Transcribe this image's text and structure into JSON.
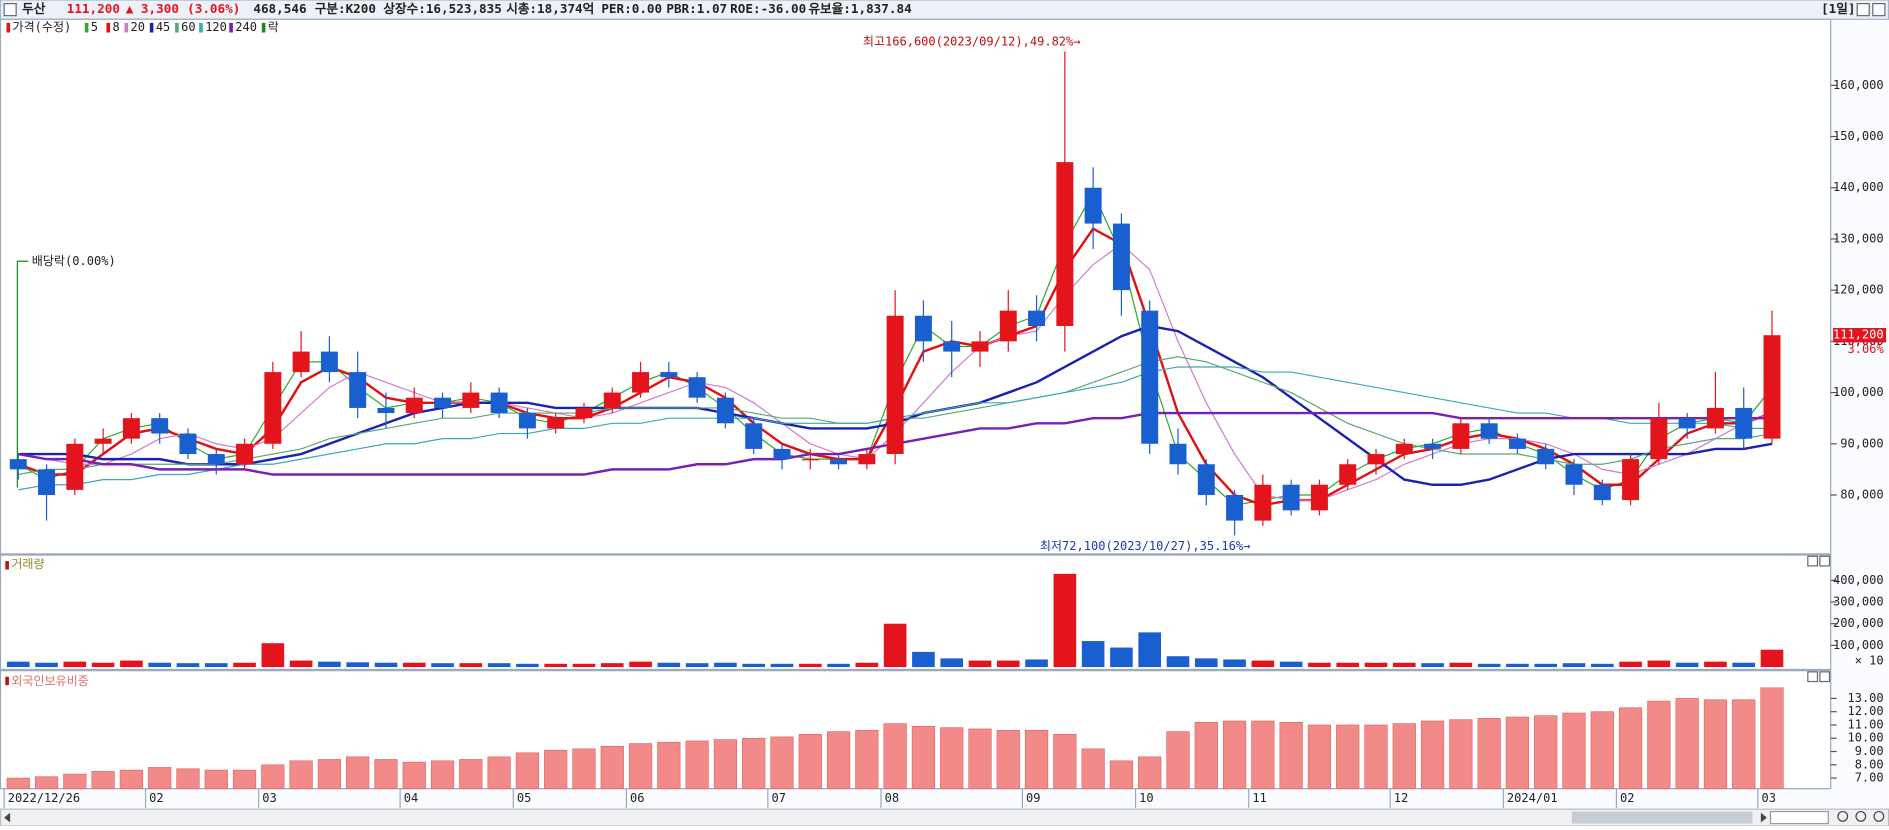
{
  "header": {
    "name": "두산",
    "price": "111,200",
    "change": "▲ 3,300",
    "change_pct": "(3.06%)",
    "volume": "468,546",
    "market": "구분:K200",
    "shares": "상장수:16,523,835",
    "market_cap": "시총:18,374억",
    "per": "PER:0.00",
    "pbr": "PBR:1.07",
    "roe": "ROE:-36.00",
    "reserve": "유보율:1,837.84",
    "period": "[1일]"
  },
  "chart_data": [
    {
      "type": "candlestick",
      "price_label": "가격(수정)",
      "ex_rights_label": "락",
      "up_color": "#e3141c",
      "down_color": "#1a5fd0",
      "high_annotation": "최고166,600(2023/09/12),49.82%→",
      "low_annotation": "최저72,100(2023/10/27),35.16%→",
      "dividend_annotation": "배당락(0.00%)",
      "last_price_label": "111,200",
      "last_change_label": "3.06%",
      "open": [
        87000,
        85000,
        81000,
        90000,
        91000,
        95000,
        92000,
        88000,
        86000,
        90000,
        104000,
        108000,
        104000,
        97000,
        96000,
        99000,
        97000,
        100000,
        96000,
        93000,
        95000,
        97000,
        100000,
        104000,
        103000,
        99000,
        94000,
        89000,
        87000,
        87000,
        86000,
        88000,
        115000,
        110000,
        108000,
        110000,
        116000,
        113000,
        140000,
        133000,
        116000,
        90000,
        86000,
        80000,
        75000,
        82000,
        77000,
        82000,
        86000,
        88000,
        90000,
        89000,
        94000,
        91000,
        89000,
        86000,
        82000,
        79000,
        87000,
        95000,
        93000,
        97000,
        91000
      ],
      "high": [
        88000,
        86000,
        91000,
        93000,
        96000,
        96000,
        93000,
        89000,
        91000,
        106000,
        112000,
        111000,
        108000,
        100000,
        101000,
        100000,
        102000,
        101000,
        97000,
        96000,
        98000,
        101000,
        106000,
        106000,
        104000,
        100000,
        95000,
        90000,
        89000,
        88000,
        89000,
        120000,
        118000,
        114000,
        112000,
        120000,
        119000,
        166600,
        144000,
        135000,
        118000,
        93000,
        87000,
        81000,
        84000,
        83000,
        83000,
        87000,
        89000,
        91000,
        91000,
        95000,
        95000,
        92000,
        90000,
        87000,
        83000,
        88000,
        98000,
        96000,
        104000,
        101000,
        116000
      ],
      "low": [
        83000,
        75000,
        80000,
        88000,
        90000,
        90000,
        87000,
        84000,
        85000,
        89000,
        103000,
        102000,
        95000,
        93000,
        95000,
        95000,
        96000,
        95000,
        91000,
        92000,
        94000,
        96000,
        99000,
        101000,
        98000,
        93000,
        88000,
        85000,
        85000,
        85000,
        85000,
        86000,
        106000,
        103000,
        105000,
        108000,
        110000,
        108000,
        128000,
        115000,
        88000,
        84000,
        78000,
        72100,
        74000,
        76000,
        76000,
        81000,
        84000,
        87000,
        87000,
        88000,
        90000,
        88000,
        85000,
        80000,
        78000,
        78000,
        86000,
        91000,
        92000,
        89000,
        90000
      ],
      "close": [
        85000,
        80000,
        90000,
        91000,
        95000,
        92000,
        88000,
        86000,
        90000,
        104000,
        108000,
        104000,
        97000,
        96000,
        99000,
        97000,
        100000,
        96000,
        93000,
        95000,
        97000,
        100000,
        104000,
        103000,
        99000,
        94000,
        89000,
        87000,
        87000,
        86000,
        88000,
        115000,
        110000,
        108000,
        110000,
        116000,
        113000,
        145000,
        133000,
        120000,
        90000,
        86000,
        80000,
        75000,
        82000,
        77000,
        82000,
        86000,
        88000,
        90000,
        89000,
        94000,
        91000,
        89000,
        86000,
        82000,
        79000,
        87000,
        95000,
        93000,
        97000,
        91000,
        111200
      ],
      "series": [
        {
          "name": "5",
          "color": "#2fa82f",
          "values": [
            86000,
            83000,
            85000,
            91000,
            93000,
            94000,
            90000,
            87000,
            88000,
            97000,
            106000,
            106000,
            101000,
            97000,
            98000,
            98000,
            99000,
            98000,
            95000,
            94000,
            96000,
            99000,
            102000,
            104000,
            101000,
            97000,
            92000,
            88000,
            87000,
            87000,
            87000,
            102000,
            113000,
            109000,
            109000,
            113000,
            115000,
            129000,
            139000,
            127000,
            105000,
            88000,
            83000,
            78000,
            79000,
            80000,
            80000,
            84000,
            87000,
            89000,
            90000,
            92000,
            93000,
            90000,
            88000,
            84000,
            81000,
            83000,
            91000,
            94000,
            95000,
            94000,
            101000
          ]
        },
        {
          "name": "8",
          "color": "#e01010",
          "values": [
            86000,
            84000,
            84000,
            88000,
            92000,
            93000,
            91000,
            89000,
            88000,
            93000,
            102000,
            105000,
            103000,
            99000,
            98000,
            98000,
            98000,
            98000,
            96000,
            95000,
            95000,
            97000,
            100000,
            103000,
            102000,
            99000,
            94000,
            90000,
            88000,
            87000,
            87000,
            97000,
            108000,
            110000,
            109000,
            111000,
            113000,
            124000,
            132000,
            129000,
            113000,
            96000,
            86000,
            80000,
            78000,
            79000,
            79000,
            82000,
            85000,
            88000,
            89000,
            91000,
            92000,
            91000,
            89000,
            86000,
            82000,
            82000,
            87000,
            92000,
            94000,
            94000,
            96000
          ]
        },
        {
          "name": "20",
          "color": "#d27ad2",
          "values": [
            88000,
            87000,
            86000,
            86000,
            88000,
            91000,
            92000,
            90000,
            89000,
            91000,
            96000,
            101000,
            104000,
            102000,
            100000,
            98000,
            98000,
            98000,
            97000,
            96000,
            95000,
            96000,
            98000,
            100000,
            102000,
            101000,
            98000,
            94000,
            90000,
            88000,
            87000,
            92000,
            98000,
            104000,
            109000,
            111000,
            112000,
            119000,
            125000,
            129000,
            124000,
            110000,
            98000,
            88000,
            80000,
            79000,
            79000,
            81000,
            83000,
            86000,
            88000,
            90000,
            91000,
            91000,
            90000,
            88000,
            85000,
            84000,
            86000,
            88000,
            91000,
            94000,
            96000
          ]
        },
        {
          "name": "45",
          "color": "#1c22b0",
          "values": [
            88000,
            88000,
            88000,
            87000,
            87000,
            87000,
            86000,
            86000,
            86000,
            87000,
            88000,
            90000,
            92000,
            94000,
            96000,
            97000,
            98000,
            98000,
            98000,
            97000,
            97000,
            97000,
            97000,
            97000,
            97000,
            96000,
            95000,
            94000,
            93000,
            93000,
            93000,
            94000,
            96000,
            97000,
            98000,
            100000,
            102000,
            105000,
            108000,
            111000,
            113000,
            112000,
            109000,
            106000,
            103000,
            99000,
            95000,
            91000,
            87000,
            83000,
            82000,
            82000,
            83000,
            85000,
            87000,
            88000,
            88000,
            88000,
            88000,
            88000,
            89000,
            89000,
            90000
          ]
        },
        {
          "name": "60",
          "color": "#5aa878",
          "values": [
            84000,
            85000,
            85000,
            86000,
            86000,
            86000,
            86000,
            86000,
            87000,
            88000,
            89000,
            91000,
            92000,
            93000,
            94000,
            95000,
            95000,
            96000,
            96000,
            96000,
            96000,
            97000,
            97000,
            97000,
            97000,
            97000,
            96000,
            95000,
            95000,
            94000,
            94000,
            95000,
            95000,
            96000,
            97000,
            98000,
            99000,
            100000,
            102000,
            104000,
            106000,
            107000,
            106000,
            104000,
            102000,
            100000,
            97000,
            94000,
            92000,
            90000,
            89000,
            88000,
            88000,
            88000,
            87000,
            86000,
            86000,
            87000,
            89000,
            90000,
            91000,
            91000,
            92000
          ]
        },
        {
          "name": "120",
          "color": "#3ca8b8",
          "values": [
            81000,
            82000,
            82000,
            83000,
            83000,
            84000,
            84000,
            85000,
            86000,
            86000,
            87000,
            88000,
            89000,
            90000,
            90000,
            91000,
            91000,
            92000,
            92000,
            93000,
            93000,
            94000,
            94000,
            95000,
            95000,
            95000,
            95000,
            94000,
            94000,
            94000,
            94000,
            95000,
            96000,
            97000,
            98000,
            98000,
            99000,
            100000,
            101000,
            102000,
            104000,
            105000,
            105000,
            105000,
            104000,
            104000,
            103000,
            102000,
            101000,
            100000,
            99000,
            98000,
            97000,
            96000,
            96000,
            95000,
            95000,
            94000,
            94000,
            94000,
            94000,
            93000,
            93000
          ]
        },
        {
          "name": "240",
          "color": "#7a20b0",
          "values": [
            88000,
            87000,
            87000,
            86000,
            86000,
            85000,
            85000,
            85000,
            85000,
            84000,
            84000,
            84000,
            84000,
            84000,
            84000,
            84000,
            84000,
            84000,
            84000,
            84000,
            84000,
            85000,
            85000,
            85000,
            86000,
            86000,
            87000,
            87000,
            88000,
            88000,
            89000,
            90000,
            91000,
            92000,
            93000,
            93000,
            94000,
            94000,
            95000,
            95000,
            96000,
            96000,
            96000,
            96000,
            96000,
            96000,
            96000,
            96000,
            96000,
            96000,
            96000,
            95000,
            95000,
            95000,
            95000,
            95000,
            95000,
            95000,
            95000,
            95000,
            95000,
            95000,
            95000
          ]
        }
      ],
      "ylim": [
        68500,
        172900
      ],
      "yticks": [
        {
          "value": 80000,
          "label": "80,000"
        },
        {
          "value": 90000,
          "label": "90,000"
        },
        {
          "value": 100000,
          "label": "100,000"
        },
        {
          "value": 110000,
          "label": "110,000"
        },
        {
          "value": 120000,
          "label": "120,000"
        },
        {
          "value": 130000,
          "label": "130,000"
        },
        {
          "value": 140000,
          "label": "140,000"
        },
        {
          "value": 150000,
          "label": "150,000"
        },
        {
          "value": 160000,
          "label": "160,000"
        }
      ]
    },
    {
      "type": "bar",
      "title": "거래량",
      "unit_label": "× 10",
      "values": [
        25000,
        20000,
        25000,
        20000,
        30000,
        20000,
        18000,
        18000,
        20000,
        110000,
        30000,
        25000,
        22000,
        20000,
        20000,
        18000,
        18000,
        18000,
        15000,
        15000,
        15000,
        18000,
        25000,
        20000,
        18000,
        20000,
        15000,
        15000,
        15000,
        15000,
        20000,
        200000,
        70000,
        40000,
        30000,
        30000,
        35000,
        430000,
        120000,
        90000,
        160000,
        50000,
        40000,
        35000,
        30000,
        25000,
        20000,
        20000,
        20000,
        20000,
        18000,
        20000,
        15000,
        15000,
        15000,
        18000,
        15000,
        25000,
        30000,
        20000,
        25000,
        20000,
        80000
      ],
      "ylim": [
        0,
        516600
      ],
      "yticks": [
        {
          "value": 100000,
          "label": "100,000"
        },
        {
          "value": 200000,
          "label": "200,000"
        },
        {
          "value": 300000,
          "label": "300,000"
        },
        {
          "value": 400000,
          "label": "400,000"
        }
      ]
    },
    {
      "type": "bar",
      "title": "외국인보유비중",
      "color": "#f28a8a",
      "categories": [
        "2022/12/26",
        null,
        null,
        null,
        null,
        "02",
        null,
        null,
        null,
        "03",
        null,
        null,
        null,
        null,
        "04",
        null,
        null,
        null,
        "05",
        null,
        null,
        null,
        "06",
        null,
        null,
        null,
        null,
        "07",
        null,
        null,
        null,
        "08",
        null,
        null,
        null,
        null,
        "09",
        null,
        null,
        null,
        "10",
        null,
        null,
        null,
        "11",
        null,
        null,
        null,
        null,
        "12",
        null,
        null,
        null,
        "2024/01",
        null,
        null,
        null,
        "02",
        null,
        null,
        null,
        null,
        "03"
      ],
      "values": [
        7.0,
        7.1,
        7.3,
        7.5,
        7.6,
        7.8,
        7.7,
        7.6,
        7.6,
        8.0,
        8.3,
        8.4,
        8.6,
        8.4,
        8.2,
        8.3,
        8.4,
        8.6,
        8.9,
        9.1,
        9.2,
        9.4,
        9.6,
        9.7,
        9.8,
        9.9,
        10.0,
        10.1,
        10.3,
        10.5,
        10.6,
        11.1,
        10.9,
        10.8,
        10.7,
        10.6,
        10.6,
        10.3,
        9.2,
        8.3,
        8.6,
        10.5,
        11.2,
        11.3,
        11.3,
        11.2,
        11.0,
        11.0,
        11.0,
        11.1,
        11.3,
        11.4,
        11.5,
        11.6,
        11.7,
        11.9,
        12.0,
        12.3,
        12.8,
        13.0,
        12.9,
        12.9,
        13.8
      ],
      "ylim": [
        6.2,
        15
      ],
      "yticks": [
        {
          "value": 7,
          "label": "7.00"
        },
        {
          "value": 8,
          "label": "8.00"
        },
        {
          "value": 9,
          "label": "9.00"
        },
        {
          "value": 10,
          "label": "10.00"
        },
        {
          "value": 11,
          "label": "11.00"
        },
        {
          "value": 12,
          "label": "12.00"
        },
        {
          "value": 13,
          "label": "13.00"
        }
      ]
    }
  ]
}
